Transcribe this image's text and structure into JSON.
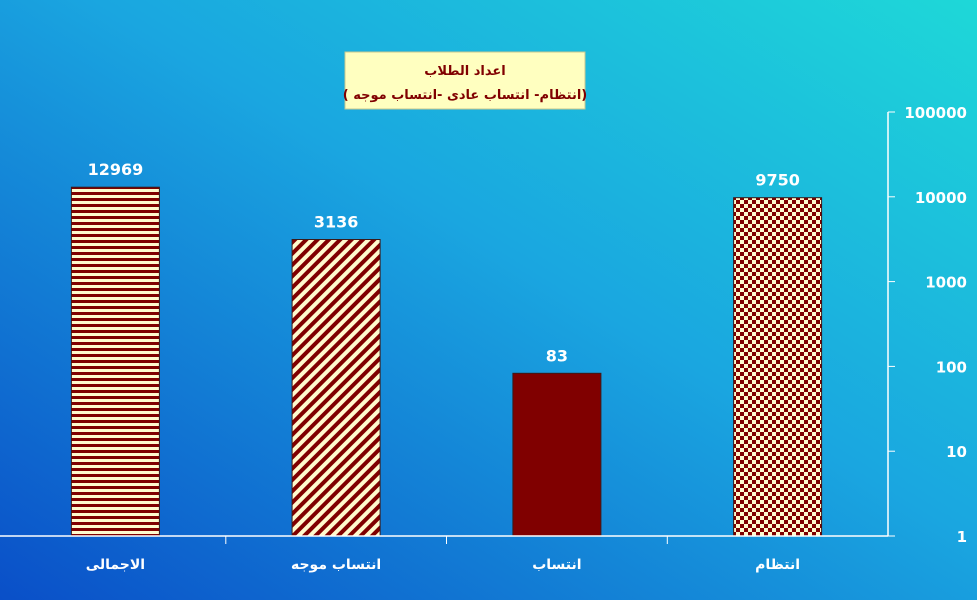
{
  "chart_data": {
    "type": "bar",
    "title": "اعداد الطلاب",
    "subtitle": "(انتظام- انتساب عادى -انتساب موجه )",
    "categories": [
      "الاجمالى",
      "انتساب موجه",
      "انتساب",
      "انتظام"
    ],
    "values": [
      12969,
      3136,
      83,
      9750
    ],
    "data_labels": [
      "12969",
      "3136",
      "83",
      "9750"
    ],
    "y_scale": "log",
    "ylim": [
      1,
      100000
    ],
    "y_ticks": [
      "1",
      "10",
      "100",
      "1000",
      "10000",
      "100000"
    ],
    "y_axis_side": "right",
    "grid": false,
    "legend": "none",
    "bar_patterns": [
      "horizontal-stripes",
      "diagonal-stripes",
      "solid",
      "checkerboard"
    ],
    "colors": {
      "bar_dark": "#800000",
      "bar_light": "#fffacd",
      "title_box": "#ffffc0",
      "label_text": "#ffffff",
      "background_start": "#0a4fc8",
      "background_end": "#1ed8d8"
    }
  }
}
